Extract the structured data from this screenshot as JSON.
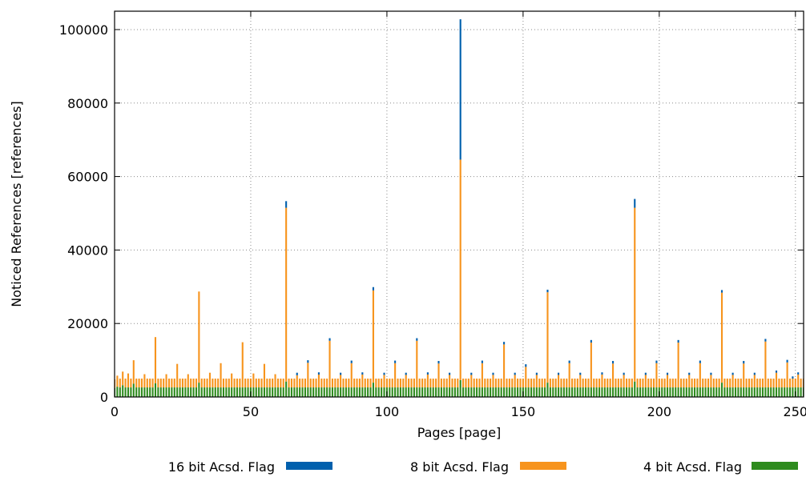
{
  "chart_data": {
    "type": "bar",
    "stacked": true,
    "title": "",
    "xlabel": "Pages [page]",
    "ylabel": "Noticed References [references]",
    "xlim": [
      0,
      253
    ],
    "ylim": [
      0,
      105000
    ],
    "x_ticks": [
      0,
      50,
      100,
      150,
      200,
      250
    ],
    "y_ticks": [
      0,
      20000,
      40000,
      60000,
      80000,
      100000
    ],
    "grid": true,
    "legend_position": "bottom",
    "page_start": 0,
    "page_count": 256,
    "series": [
      {
        "name": "4 bit Acsd. Flag",
        "color": "#2e8b1e",
        "stack_order": 0,
        "base_value": 2600,
        "overrides": {
          "0": 2400,
          "1": 2800,
          "3": 3200,
          "7": 3600,
          "15": 3700,
          "31": 3900,
          "63": 4200,
          "95": 3900,
          "127": 4600,
          "159": 3900,
          "191": 4200,
          "223": 3900,
          "255": 3500
        }
      },
      {
        "name": "8 bit Acsd. Flag",
        "color": "#f7941d",
        "stack_order": 1,
        "base_value": 2400,
        "overrides": {
          "1": 3000,
          "3": 3700,
          "5": 3800,
          "7": 6400,
          "11": 3600,
          "15": 12600,
          "19": 3600,
          "23": 6400,
          "27": 3600,
          "31": 24800,
          "35": 4000,
          "39": 6600,
          "43": 3800,
          "47": 12300,
          "51": 3800,
          "55": 6400,
          "59": 3600,
          "63": 47300,
          "67": 3300,
          "71": 6700,
          "75": 3500,
          "79": 12700,
          "83": 3400,
          "87": 6600,
          "91": 3500,
          "95": 25100,
          "99": 3400,
          "103": 6600,
          "107": 3400,
          "111": 12700,
          "115": 3500,
          "119": 6500,
          "123": 3400,
          "127": 60000,
          "131": 3400,
          "135": 6600,
          "139": 3400,
          "143": 11700,
          "147": 3400,
          "151": 5600,
          "155": 3400,
          "159": 24600,
          "163": 3400,
          "167": 6600,
          "171": 3400,
          "175": 12200,
          "179": 3500,
          "183": 6500,
          "187": 3400,
          "191": 47300,
          "195": 3400,
          "199": 6600,
          "203": 3400,
          "207": 12200,
          "211": 3400,
          "215": 6600,
          "219": 3400,
          "223": 24500,
          "227": 3400,
          "231": 6500,
          "235": 3400,
          "239": 12500,
          "243": 4000,
          "247": 6800,
          "251": 3500,
          "255": 2000
        }
      },
      {
        "name": "16 bit Acsd. Flag",
        "color": "#0060ad",
        "stack_order": 2,
        "base_value": 0,
        "overrides": {
          "63": 1800,
          "67": 700,
          "71": 700,
          "75": 600,
          "79": 700,
          "83": 600,
          "87": 700,
          "91": 600,
          "95": 900,
          "99": 600,
          "103": 700,
          "107": 600,
          "111": 700,
          "115": 600,
          "119": 700,
          "123": 600,
          "127": 38200,
          "131": 600,
          "135": 700,
          "139": 600,
          "143": 700,
          "147": 600,
          "151": 700,
          "155": 600,
          "159": 700,
          "163": 600,
          "167": 700,
          "171": 600,
          "175": 700,
          "179": 600,
          "183": 700,
          "187": 600,
          "191": 2400,
          "195": 600,
          "199": 700,
          "203": 600,
          "207": 700,
          "211": 600,
          "215": 700,
          "219": 600,
          "223": 700,
          "227": 600,
          "231": 700,
          "235": 600,
          "239": 700,
          "243": 600,
          "247": 700,
          "249": 600,
          "251": 600,
          "255": 600
        }
      }
    ]
  },
  "legend": {
    "entries": [
      {
        "label": "16 bit Acsd. Flag",
        "color": "#0060ad"
      },
      {
        "label": "8 bit Acsd. Flag",
        "color": "#f7941d"
      },
      {
        "label": "4 bit Acsd. Flag",
        "color": "#2e8b1e"
      }
    ]
  }
}
